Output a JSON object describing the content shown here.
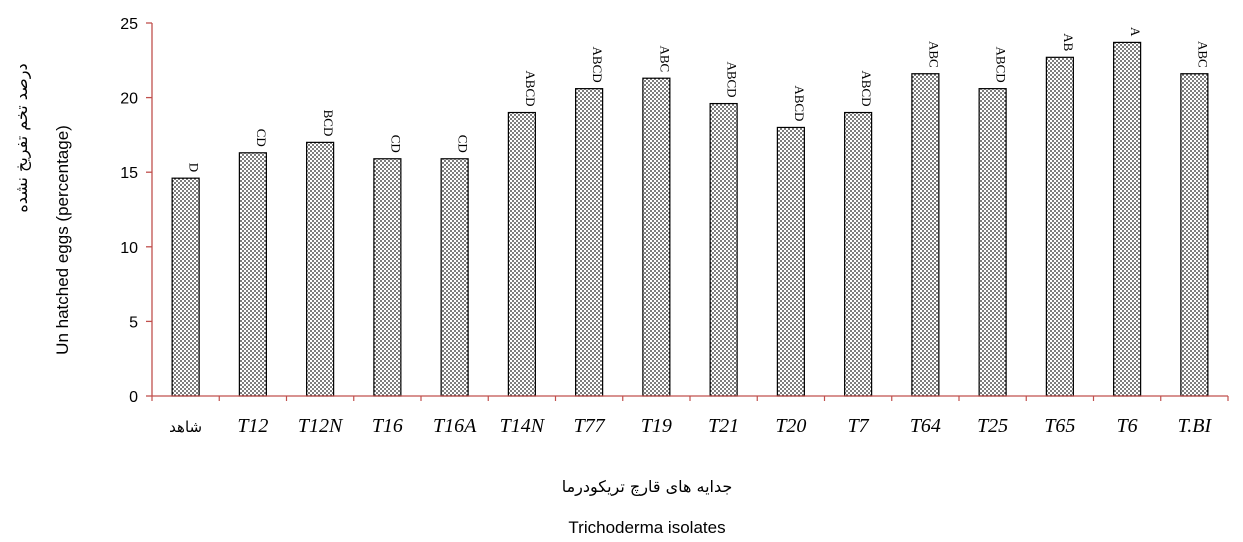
{
  "chart_data": {
    "type": "bar",
    "categories": [
      "شاهد",
      "T12",
      "T12N",
      "T16",
      "T16A",
      "T14N",
      "T77",
      "T19",
      "T21",
      "T20",
      "T7",
      "T64",
      "T25",
      "T65",
      "T6",
      "T.BI"
    ],
    "values": [
      14.6,
      16.3,
      17.0,
      15.9,
      15.9,
      19.0,
      20.6,
      21.3,
      19.6,
      18.0,
      19.0,
      21.6,
      20.6,
      22.7,
      23.7,
      21.6
    ],
    "letters": [
      "D",
      "CD",
      "BCD",
      "CD",
      "CD",
      "ABCD",
      "ABCD",
      "ABC",
      "ABCD",
      "ABCD",
      "ABCD",
      "ABC",
      "ABCD",
      "AB",
      "A",
      "ABC"
    ],
    "ylim": [
      0,
      25
    ],
    "yticks": [
      0,
      5,
      10,
      15,
      20,
      25
    ],
    "ylabel": "Un hatched eggs (percentage)",
    "ylabel_fa": "درصد تخم تفریخ نشده",
    "xlabel": "Trichoderma isolates",
    "xlabel_fa": "جدایه های قارچ تریکودرما",
    "colors": {
      "axis": "#c0504d",
      "bar_border": "#000000",
      "bar_fill": "#ffffff"
    }
  }
}
